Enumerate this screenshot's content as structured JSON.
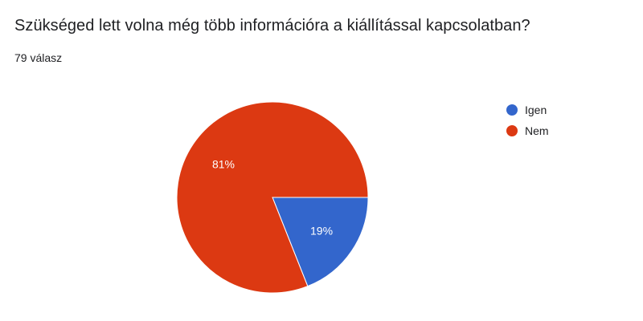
{
  "header": {
    "title": "Szükséged lett volna még több információra a kiállítással kapcsolatban?",
    "response_count": "79 válasz"
  },
  "chart_data": {
    "type": "pie",
    "title": "Szükséged lett volna még több információra a kiállítással kapcsolatban?",
    "categories": [
      "Igen",
      "Nem"
    ],
    "values": [
      19,
      81
    ],
    "data_labels": [
      "19%",
      "81%"
    ],
    "colors": [
      "#3366cc",
      "#dc3912"
    ],
    "legend_position": "right",
    "start_angle_deg": 90
  }
}
